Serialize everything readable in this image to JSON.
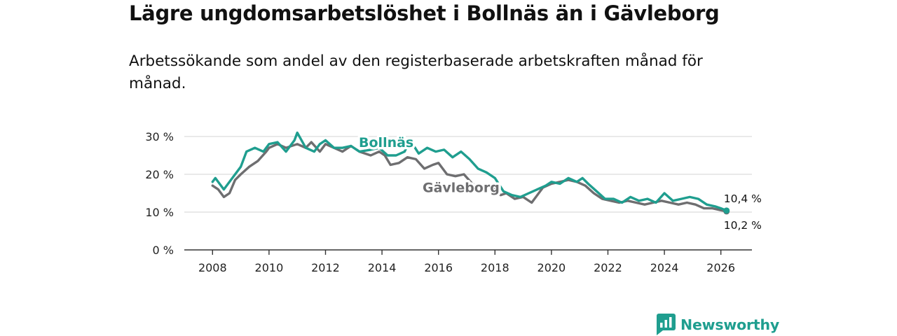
{
  "header": {
    "title": "Lägre ungdomsarbetslöshet i Bollnäs än i Gävleborg",
    "subtitle": "Arbetssökande som andel av den registerbaserade arbetskraften månad för månad."
  },
  "brand": {
    "name": "Newsworthy",
    "icon": "newsworthy-logo-icon",
    "color": "#1f9e8f"
  },
  "chart_data": {
    "type": "line",
    "title": "Lägre ungdomsarbetslöshet i Bollnäs än i Gävleborg",
    "subtitle": "Arbetssökande som andel av den registerbaserade arbetskraften månad för månad.",
    "xlabel": "",
    "ylabel": "",
    "xlim": [
      2007.0,
      2027.1
    ],
    "ylim": [
      0,
      30
    ],
    "grid": true,
    "x_ticks": [
      2008,
      2010,
      2012,
      2014,
      2016,
      2018,
      2020,
      2022,
      2024,
      2026
    ],
    "x_tick_labels": [
      "2008",
      "2010",
      "2012",
      "2014",
      "2016",
      "2018",
      "2020",
      "2022",
      "2024",
      "2026"
    ],
    "y_ticks": [
      0,
      10,
      20,
      30
    ],
    "y_tick_labels": [
      "0 %",
      "10 %",
      "20 %",
      "30 %"
    ],
    "series": [
      {
        "name": "Gävleborg",
        "color": "#6e6e70",
        "label_at": [
          2016.8,
          15.3
        ],
        "end_label": "10,2 %",
        "points": [
          [
            2008.0,
            17.0
          ],
          [
            2008.2,
            16.0
          ],
          [
            2008.4,
            14.0
          ],
          [
            2008.6,
            15.0
          ],
          [
            2008.8,
            18.5
          ],
          [
            2009.0,
            20.0
          ],
          [
            2009.3,
            22.0
          ],
          [
            2009.6,
            23.5
          ],
          [
            2009.9,
            26.0
          ],
          [
            2010.0,
            27.0
          ],
          [
            2010.3,
            28.0
          ],
          [
            2010.6,
            27.0
          ],
          [
            2011.0,
            28.0
          ],
          [
            2011.3,
            27.0
          ],
          [
            2011.5,
            28.5
          ],
          [
            2011.8,
            26.0
          ],
          [
            2012.0,
            28.0
          ],
          [
            2012.3,
            27.0
          ],
          [
            2012.6,
            26.0
          ],
          [
            2012.9,
            27.5
          ],
          [
            2013.2,
            26.0
          ],
          [
            2013.6,
            25.0
          ],
          [
            2013.9,
            26.0
          ],
          [
            2014.1,
            25.0
          ],
          [
            2014.3,
            22.5
          ],
          [
            2014.6,
            23.0
          ],
          [
            2014.9,
            24.5
          ],
          [
            2015.2,
            24.0
          ],
          [
            2015.5,
            21.5
          ],
          [
            2015.8,
            22.5
          ],
          [
            2016.0,
            23.0
          ],
          [
            2016.3,
            20.0
          ],
          [
            2016.6,
            19.5
          ],
          [
            2016.9,
            20.0
          ],
          [
            2017.2,
            17.5
          ],
          [
            2017.5,
            16.5
          ],
          [
            2017.8,
            17.0
          ],
          [
            2018.0,
            16.0
          ],
          [
            2018.2,
            14.5
          ],
          [
            2018.4,
            15.0
          ],
          [
            2018.7,
            13.5
          ],
          [
            2019.0,
            14.0
          ],
          [
            2019.3,
            12.5
          ],
          [
            2019.7,
            16.5
          ],
          [
            2020.0,
            17.5
          ],
          [
            2020.3,
            18.0
          ],
          [
            2020.6,
            18.5
          ],
          [
            2020.9,
            18.0
          ],
          [
            2021.2,
            17.0
          ],
          [
            2021.5,
            15.0
          ],
          [
            2021.8,
            13.5
          ],
          [
            2022.1,
            13.0
          ],
          [
            2022.4,
            12.5
          ],
          [
            2022.7,
            13.0
          ],
          [
            2023.0,
            12.5
          ],
          [
            2023.3,
            12.0
          ],
          [
            2023.6,
            12.5
          ],
          [
            2023.9,
            13.0
          ],
          [
            2024.2,
            12.5
          ],
          [
            2024.5,
            12.0
          ],
          [
            2024.8,
            12.5
          ],
          [
            2025.1,
            12.0
          ],
          [
            2025.4,
            11.0
          ],
          [
            2025.7,
            11.0
          ],
          [
            2026.0,
            10.5
          ],
          [
            2026.2,
            10.2
          ]
        ]
      },
      {
        "name": "Bollnäs",
        "color": "#1f9e8f",
        "label_at": [
          2014.15,
          27.2
        ],
        "end_label": "10,4 %",
        "points": [
          [
            2008.0,
            18.0
          ],
          [
            2008.1,
            19.0
          ],
          [
            2008.4,
            16.0
          ],
          [
            2008.7,
            19.0
          ],
          [
            2009.0,
            22.0
          ],
          [
            2009.2,
            26.0
          ],
          [
            2009.5,
            27.0
          ],
          [
            2009.8,
            26.0
          ],
          [
            2010.0,
            28.0
          ],
          [
            2010.3,
            28.5
          ],
          [
            2010.6,
            26.0
          ],
          [
            2010.9,
            29.0
          ],
          [
            2011.0,
            31.0
          ],
          [
            2011.3,
            27.0
          ],
          [
            2011.6,
            26.0
          ],
          [
            2011.8,
            28.0
          ],
          [
            2012.0,
            29.0
          ],
          [
            2012.3,
            27.0
          ],
          [
            2012.6,
            27.0
          ],
          [
            2012.9,
            27.5
          ],
          [
            2013.2,
            26.0
          ],
          [
            2013.6,
            26.5
          ],
          [
            2013.9,
            27.0
          ],
          [
            2014.2,
            25.0
          ],
          [
            2014.5,
            25.0
          ],
          [
            2014.8,
            26.0
          ],
          [
            2015.0,
            29.0
          ],
          [
            2015.3,
            25.5
          ],
          [
            2015.6,
            27.0
          ],
          [
            2015.9,
            26.0
          ],
          [
            2016.2,
            26.5
          ],
          [
            2016.5,
            24.5
          ],
          [
            2016.8,
            26.0
          ],
          [
            2017.1,
            24.0
          ],
          [
            2017.4,
            21.5
          ],
          [
            2017.7,
            20.5
          ],
          [
            2018.0,
            19.0
          ],
          [
            2018.3,
            15.5
          ],
          [
            2018.6,
            14.5
          ],
          [
            2018.9,
            14.0
          ],
          [
            2019.2,
            15.0
          ],
          [
            2019.5,
            16.0
          ],
          [
            2019.8,
            17.0
          ],
          [
            2020.0,
            18.0
          ],
          [
            2020.3,
            17.5
          ],
          [
            2020.6,
            19.0
          ],
          [
            2020.9,
            18.0
          ],
          [
            2021.1,
            19.0
          ],
          [
            2021.3,
            17.5
          ],
          [
            2021.6,
            15.5
          ],
          [
            2021.9,
            13.5
          ],
          [
            2022.2,
            13.5
          ],
          [
            2022.5,
            12.5
          ],
          [
            2022.8,
            14.0
          ],
          [
            2023.1,
            13.0
          ],
          [
            2023.4,
            13.5
          ],
          [
            2023.7,
            12.5
          ],
          [
            2024.0,
            15.0
          ],
          [
            2024.3,
            13.0
          ],
          [
            2024.6,
            13.5
          ],
          [
            2024.9,
            14.0
          ],
          [
            2025.2,
            13.5
          ],
          [
            2025.5,
            12.0
          ],
          [
            2025.8,
            11.5
          ],
          [
            2026.0,
            11.0
          ],
          [
            2026.2,
            10.4
          ]
        ]
      }
    ]
  }
}
